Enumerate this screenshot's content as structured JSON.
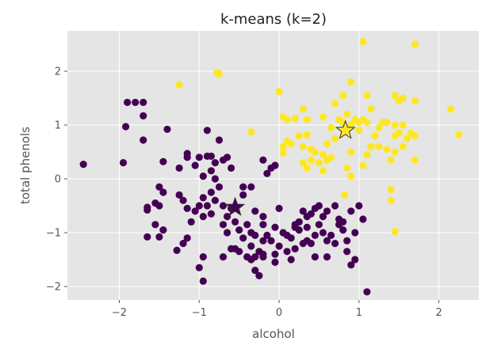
{
  "chart_data": {
    "type": "scatter",
    "title": "k-means (k=2)",
    "xlabel": "alcohol",
    "ylabel": "total phenols",
    "xlim": [
      -2.65,
      2.5
    ],
    "ylim": [
      -2.25,
      2.75
    ],
    "xticks": [
      -2,
      -1,
      0,
      1,
      2
    ],
    "yticks": [
      -2,
      -1,
      0,
      1,
      2
    ],
    "xtick_labels": [
      "−2",
      "−1",
      "0",
      "1",
      "2"
    ],
    "ytick_labels": [
      "−2",
      "−1",
      "0",
      "1",
      "2"
    ],
    "grid": true,
    "background": "#e5e5e5",
    "grid_color": "#ffffff",
    "series": [
      {
        "color": "#440154",
        "marker": "circle",
        "points": [
          [
            -2.45,
            0.27
          ],
          [
            -1.95,
            0.3
          ],
          [
            -1.8,
            1.42
          ],
          [
            -1.9,
            1.42
          ],
          [
            -1.7,
            1.42
          ],
          [
            -1.92,
            0.97
          ],
          [
            -1.7,
            1.17
          ],
          [
            -1.7,
            0.72
          ],
          [
            -1.4,
            0.92
          ],
          [
            -1.45,
            0.32
          ],
          [
            -1.15,
            0.47
          ],
          [
            -1.15,
            0.4
          ],
          [
            -1.25,
            0.2
          ],
          [
            -1.5,
            -0.15
          ],
          [
            -1.45,
            -0.25
          ],
          [
            -1.55,
            -0.45
          ],
          [
            -1.65,
            -0.53
          ],
          [
            -1.65,
            -0.58
          ],
          [
            -1.5,
            -0.5
          ],
          [
            -1.65,
            -1.08
          ],
          [
            -1.55,
            -0.85
          ],
          [
            -1.45,
            -0.95
          ],
          [
            -1.5,
            -1.08
          ],
          [
            -1.25,
            -0.3
          ],
          [
            -1.2,
            -0.4
          ],
          [
            -1.15,
            -0.55
          ],
          [
            -1.1,
            -0.8
          ],
          [
            -1.15,
            -1.1
          ],
          [
            -1.2,
            -1.2
          ],
          [
            -1.28,
            -1.33
          ],
          [
            -1.05,
            0.25
          ],
          [
            -0.95,
            0.05
          ],
          [
            -1.0,
            0.4
          ],
          [
            -0.9,
            0.42
          ],
          [
            -0.85,
            0.42
          ],
          [
            -0.8,
            0.3
          ],
          [
            -0.75,
            0.72
          ],
          [
            -0.7,
            0.35
          ],
          [
            -0.65,
            0.4
          ],
          [
            -0.6,
            0.2
          ],
          [
            -0.9,
            0.9
          ],
          [
            -0.85,
            0.15
          ],
          [
            -0.8,
            0.0
          ],
          [
            -0.75,
            -0.15
          ],
          [
            -0.85,
            -0.25
          ],
          [
            -0.95,
            -0.35
          ],
          [
            -0.8,
            -0.4
          ],
          [
            -0.9,
            -0.5
          ],
          [
            -0.85,
            -0.65
          ],
          [
            -0.95,
            -0.7
          ],
          [
            -1.0,
            -0.5
          ],
          [
            -1.05,
            -0.6
          ],
          [
            -0.7,
            -0.5
          ],
          [
            -0.6,
            -0.55
          ],
          [
            -0.65,
            -0.7
          ],
          [
            -0.7,
            -0.85
          ],
          [
            -0.65,
            -1.0
          ],
          [
            -0.55,
            -0.8
          ],
          [
            -0.5,
            -0.95
          ],
          [
            -0.45,
            -1.1
          ],
          [
            -0.55,
            -1.3
          ],
          [
            -0.5,
            -1.35
          ],
          [
            -0.4,
            -1.45
          ],
          [
            -0.35,
            -1.5
          ],
          [
            -0.3,
            -1.45
          ],
          [
            -0.25,
            -1.35
          ],
          [
            -0.2,
            -1.15
          ],
          [
            -0.3,
            -1.05
          ],
          [
            -0.35,
            -1.0
          ],
          [
            -0.4,
            -0.85
          ],
          [
            -0.45,
            -0.3
          ],
          [
            -0.45,
            -0.15
          ],
          [
            -0.35,
            -0.15
          ],
          [
            -0.3,
            -0.6
          ],
          [
            -0.2,
            -0.7
          ],
          [
            -0.2,
            -0.85
          ],
          [
            -0.15,
            0.1
          ],
          [
            -0.1,
            0.2
          ],
          [
            -0.2,
            0.35
          ],
          [
            -0.05,
            0.25
          ],
          [
            -0.05,
            -0.9
          ],
          [
            -0.1,
            -1.15
          ],
          [
            -0.05,
            -1.55
          ],
          [
            -0.2,
            -1.4
          ],
          [
            -0.3,
            -1.7
          ],
          [
            -0.25,
            -1.8
          ],
          [
            -0.05,
            -1.4
          ],
          [
            0.0,
            -0.55
          ],
          [
            0.05,
            -1.0
          ],
          [
            0.1,
            -1.05
          ],
          [
            0.15,
            -1.1
          ],
          [
            0.2,
            -0.85
          ],
          [
            0.25,
            -0.8
          ],
          [
            0.3,
            -0.6
          ],
          [
            0.35,
            -0.7
          ],
          [
            0.35,
            -1.15
          ],
          [
            0.4,
            -0.65
          ],
          [
            0.45,
            -0.55
          ],
          [
            0.5,
            -0.5
          ],
          [
            0.55,
            -0.7
          ],
          [
            0.6,
            -0.6
          ],
          [
            0.5,
            -0.85
          ],
          [
            0.55,
            -1.0
          ],
          [
            0.6,
            -1.15
          ],
          [
            0.65,
            -1.05
          ],
          [
            0.7,
            -1.2
          ],
          [
            0.45,
            -1.05
          ],
          [
            0.4,
            -1.2
          ],
          [
            0.3,
            -1.2
          ],
          [
            0.2,
            -1.3
          ],
          [
            0.1,
            -1.35
          ],
          [
            0.75,
            -0.85
          ],
          [
            0.8,
            -0.95
          ],
          [
            0.85,
            -1.15
          ],
          [
            0.9,
            -0.6
          ],
          [
            0.95,
            -1.0
          ],
          [
            0.85,
            -1.35
          ],
          [
            0.9,
            -1.6
          ],
          [
            0.95,
            -1.5
          ],
          [
            1.0,
            -0.5
          ],
          [
            1.05,
            -0.75
          ],
          [
            1.1,
            -2.1
          ],
          [
            0.15,
            -1.5
          ],
          [
            -0.2,
            -1.45
          ],
          [
            -0.35,
            -1.25
          ],
          [
            -0.6,
            -1.3
          ],
          [
            -0.7,
            -1.45
          ],
          [
            -0.95,
            -1.45
          ],
          [
            -1.0,
            -1.65
          ],
          [
            -0.95,
            -1.9
          ],
          [
            0.25,
            -0.95
          ],
          [
            0.35,
            -0.9
          ],
          [
            0.7,
            -0.5
          ],
          [
            0.8,
            -0.8
          ],
          [
            0.45,
            -1.45
          ],
          [
            0.6,
            -1.45
          ],
          [
            0.75,
            -0.75
          ],
          [
            -0.15,
            -1.05
          ],
          [
            0.0,
            -1.25
          ],
          [
            0.2,
            -0.9
          ]
        ]
      },
      {
        "color": "#fde725",
        "marker": "circle",
        "points": [
          [
            -1.25,
            1.75
          ],
          [
            -0.78,
            1.97
          ],
          [
            -0.75,
            1.95
          ],
          [
            -0.35,
            0.87
          ],
          [
            0.0,
            1.62
          ],
          [
            0.05,
            0.48
          ],
          [
            0.1,
            0.7
          ],
          [
            0.15,
            0.65
          ],
          [
            0.05,
            0.6
          ],
          [
            0.05,
            1.15
          ],
          [
            0.1,
            1.1
          ],
          [
            0.2,
            1.12
          ],
          [
            0.25,
            0.8
          ],
          [
            0.3,
            0.6
          ],
          [
            0.35,
            0.82
          ],
          [
            0.4,
            0.55
          ],
          [
            0.45,
            0.5
          ],
          [
            0.35,
            0.2
          ],
          [
            0.3,
            0.3
          ],
          [
            0.4,
            0.35
          ],
          [
            0.55,
            0.45
          ],
          [
            0.5,
            0.3
          ],
          [
            0.55,
            0.15
          ],
          [
            0.6,
            0.35
          ],
          [
            0.65,
            0.4
          ],
          [
            0.6,
            0.65
          ],
          [
            0.7,
            0.75
          ],
          [
            0.75,
            1.1
          ],
          [
            0.65,
            0.95
          ],
          [
            0.8,
            1.05
          ],
          [
            0.85,
            1.2
          ],
          [
            0.9,
            1.0
          ],
          [
            0.95,
            1.1
          ],
          [
            1.0,
            1.05
          ],
          [
            1.05,
            1.1
          ],
          [
            0.9,
            0.5
          ],
          [
            0.85,
            0.2
          ],
          [
            0.9,
            0.05
          ],
          [
            1.05,
            0.25
          ],
          [
            1.1,
            0.45
          ],
          [
            1.15,
            0.6
          ],
          [
            1.2,
            0.8
          ],
          [
            1.25,
            0.95
          ],
          [
            1.3,
            1.05
          ],
          [
            1.35,
            0.55
          ],
          [
            1.4,
            0.35
          ],
          [
            1.45,
            0.5
          ],
          [
            1.45,
            0.8
          ],
          [
            1.5,
            0.85
          ],
          [
            1.55,
            0.6
          ],
          [
            1.6,
            0.75
          ],
          [
            1.65,
            0.85
          ],
          [
            1.7,
            0.8
          ],
          [
            1.5,
            1.45
          ],
          [
            1.45,
            1.55
          ],
          [
            1.55,
            1.5
          ],
          [
            1.7,
            1.45
          ],
          [
            1.7,
            2.5
          ],
          [
            1.05,
            2.55
          ],
          [
            0.9,
            1.8
          ],
          [
            0.8,
            1.55
          ],
          [
            1.1,
            1.55
          ],
          [
            1.15,
            1.3
          ],
          [
            1.35,
            1.05
          ],
          [
            1.45,
            1.0
          ],
          [
            1.55,
            1.0
          ],
          [
            1.1,
            1.05
          ],
          [
            0.7,
            1.4
          ],
          [
            0.55,
            1.15
          ],
          [
            0.35,
            1.1
          ],
          [
            1.4,
            -0.2
          ],
          [
            1.4,
            -0.4
          ],
          [
            1.45,
            -0.98
          ],
          [
            1.7,
            0.35
          ],
          [
            2.15,
            1.3
          ],
          [
            2.25,
            0.82
          ],
          [
            0.82,
            -0.3
          ],
          [
            1.0,
            0.9
          ],
          [
            0.3,
            1.3
          ],
          [
            1.25,
            0.6
          ]
        ]
      }
    ],
    "centroids": [
      {
        "x": -0.55,
        "y": -0.53,
        "color": "#440154",
        "marker": "star"
      },
      {
        "x": 0.83,
        "y": 0.9,
        "color": "#fde725",
        "marker": "star"
      }
    ]
  }
}
